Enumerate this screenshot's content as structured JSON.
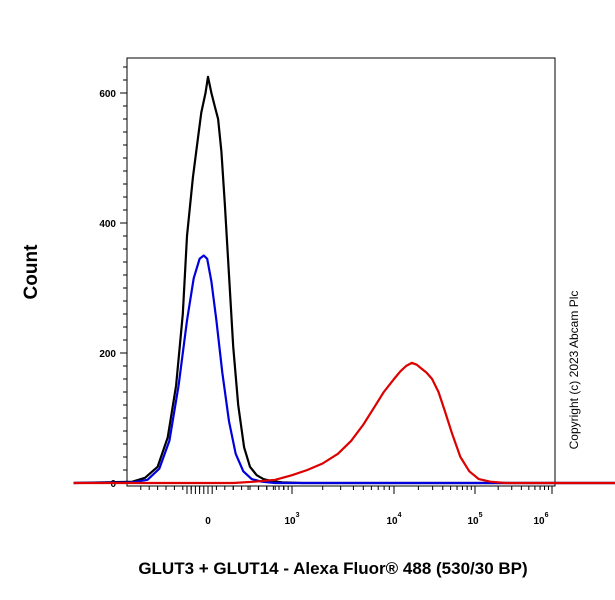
{
  "chart_data": {
    "type": "line",
    "title": "",
    "xlabel": "GLUT3 + GLUT14 - Alexa Fluor® 488 (530/30 BP)",
    "ylabel": "Count",
    "yticks": [
      "0",
      "200",
      "400",
      "600"
    ],
    "xticks": [
      {
        "base": "0",
        "exp": ""
      },
      {
        "base": "10",
        "exp": "3"
      },
      {
        "base": "10",
        "exp": "4"
      },
      {
        "base": "10",
        "exp": "5"
      },
      {
        "base": "10",
        "exp": "6"
      }
    ],
    "ylim": [
      0,
      650
    ],
    "xscale": "biexponential (logicle)",
    "grid": false,
    "legend": "none",
    "series": [
      {
        "color": "#000000",
        "points": [
          [
            -1.6,
            0
          ],
          [
            -0.9,
            2
          ],
          [
            -0.75,
            8
          ],
          [
            -0.6,
            25
          ],
          [
            -0.48,
            70
          ],
          [
            -0.38,
            150
          ],
          [
            -0.3,
            260
          ],
          [
            -0.25,
            380
          ],
          [
            -0.18,
            470
          ],
          [
            -0.12,
            530
          ],
          [
            -0.08,
            570
          ],
          [
            -0.03,
            600
          ],
          [
            0.0,
            625
          ],
          [
            0.04,
            600
          ],
          [
            0.08,
            580
          ],
          [
            0.12,
            560
          ],
          [
            0.16,
            510
          ],
          [
            0.2,
            430
          ],
          [
            0.25,
            320
          ],
          [
            0.3,
            210
          ],
          [
            0.36,
            120
          ],
          [
            0.43,
            55
          ],
          [
            0.5,
            25
          ],
          [
            0.58,
            12
          ],
          [
            0.66,
            6
          ],
          [
            0.76,
            3
          ],
          [
            0.88,
            1
          ],
          [
            1.1,
            0
          ],
          [
            5.9,
            0
          ]
        ]
      },
      {
        "color": "#0000dd",
        "points": [
          [
            -1.6,
            0
          ],
          [
            -0.9,
            1
          ],
          [
            -0.72,
            5
          ],
          [
            -0.58,
            22
          ],
          [
            -0.46,
            65
          ],
          [
            -0.35,
            150
          ],
          [
            -0.25,
            250
          ],
          [
            -0.17,
            315
          ],
          [
            -0.1,
            345
          ],
          [
            -0.05,
            350
          ],
          [
            -0.01,
            345
          ],
          [
            0.04,
            310
          ],
          [
            0.1,
            250
          ],
          [
            0.17,
            170
          ],
          [
            0.25,
            95
          ],
          [
            0.33,
            45
          ],
          [
            0.42,
            18
          ],
          [
            0.52,
            6
          ],
          [
            0.64,
            2
          ],
          [
            0.8,
            0
          ],
          [
            5.9,
            0
          ]
        ]
      },
      {
        "color": "#dd0000",
        "points": [
          [
            -1.6,
            0
          ],
          [
            0.3,
            0
          ],
          [
            0.55,
            2
          ],
          [
            0.8,
            5
          ],
          [
            1.0,
            12
          ],
          [
            1.15,
            20
          ],
          [
            1.3,
            30
          ],
          [
            1.45,
            45
          ],
          [
            1.58,
            65
          ],
          [
            1.7,
            90
          ],
          [
            1.8,
            115
          ],
          [
            1.9,
            140
          ],
          [
            2.0,
            160
          ],
          [
            2.08,
            172
          ],
          [
            2.15,
            180
          ],
          [
            2.22,
            185
          ],
          [
            2.28,
            182
          ],
          [
            2.34,
            176
          ],
          [
            2.4,
            170
          ],
          [
            2.47,
            160
          ],
          [
            2.55,
            140
          ],
          [
            2.63,
            110
          ],
          [
            2.72,
            75
          ],
          [
            2.82,
            40
          ],
          [
            2.93,
            18
          ],
          [
            3.05,
            6
          ],
          [
            3.2,
            2
          ],
          [
            3.4,
            0
          ],
          [
            5.9,
            0
          ]
        ]
      }
    ]
  },
  "copyright": "Copyright (c) 2023 Abcam Plc"
}
